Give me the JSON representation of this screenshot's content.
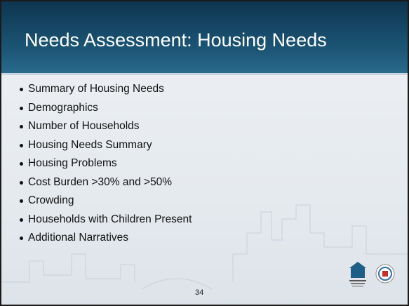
{
  "header": {
    "title": "Needs Assessment: Housing Needs"
  },
  "bullets": [
    "Summary of Housing Needs",
    "Demographics",
    "Number of Households",
    "Housing Needs Summary",
    "Housing Problems",
    "Cost Burden >30%  and >50%",
    "Crowding",
    "Households with Children Present",
    "Additional Narratives"
  ],
  "footer": {
    "page_number": "34"
  }
}
